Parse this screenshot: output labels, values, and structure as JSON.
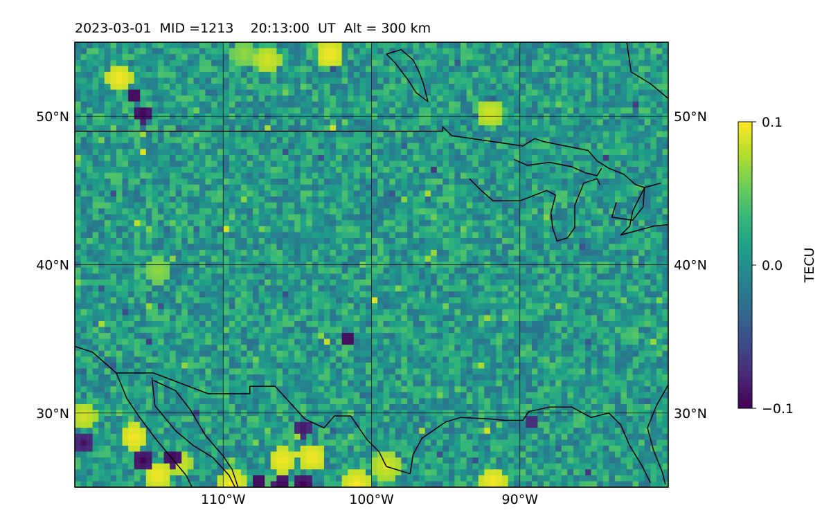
{
  "chart_data": {
    "type": "heatmap",
    "title": "2023-03-01  MID =1213    20:13:00  UT  Alt = 300 km",
    "projection": "plate-carree map",
    "lon_range": [
      -120,
      -80
    ],
    "lat_range": [
      25,
      55
    ],
    "x_ticks": [
      {
        "lon": -110,
        "label": "110°W"
      },
      {
        "lon": -100,
        "label": "100°W"
      },
      {
        "lon": -90,
        "label": "90°W"
      }
    ],
    "y_ticks": [
      {
        "lat": 50,
        "label": "50°N"
      },
      {
        "lat": 40,
        "label": "40°N"
      },
      {
        "lat": 30,
        "label": "30°N"
      }
    ],
    "y_ticks_both_sides": true,
    "grid": true,
    "colormap": "viridis",
    "colorbar": {
      "label": "TECU",
      "range": [
        -0.1,
        0.1
      ],
      "ticks": [
        {
          "value": 0.1,
          "label": "0.1"
        },
        {
          "value": 0.0,
          "label": "0.0"
        },
        {
          "value": -0.1,
          "label": "−0.1"
        }
      ],
      "stops": [
        "#440154",
        "#482777",
        "#3e4989",
        "#31688e",
        "#26828e",
        "#1f9e89",
        "#35b779",
        "#6ece58",
        "#b5de2b",
        "#fde725"
      ]
    },
    "field": {
      "description_units": "TECU",
      "cell_deg": 0.4,
      "background_value": 0.01,
      "hotspots": [
        {
          "lon": -117.2,
          "lat": 52.8,
          "value": 0.1
        },
        {
          "lon": -116.2,
          "lat": 28.6,
          "value": 0.1
        },
        {
          "lon": -114.6,
          "lat": 26.0,
          "value": 0.1
        },
        {
          "lon": -113.2,
          "lat": 26.8,
          "value": 0.09
        },
        {
          "lon": -109.6,
          "lat": 25.4,
          "value": 0.1
        },
        {
          "lon": -106.2,
          "lat": 27.0,
          "value": 0.1
        },
        {
          "lon": -104.2,
          "lat": 27.2,
          "value": 0.1
        },
        {
          "lon": -101.2,
          "lat": 25.4,
          "value": 0.1
        },
        {
          "lon": -99.2,
          "lat": 26.6,
          "value": 0.09
        },
        {
          "lon": -92.0,
          "lat": 25.6,
          "value": 0.1
        },
        {
          "lon": -103.0,
          "lat": 54.4,
          "value": 0.1
        },
        {
          "lon": -107.2,
          "lat": 54.0,
          "value": 0.09
        },
        {
          "lon": -92.2,
          "lat": 50.4,
          "value": 0.09
        },
        {
          "lon": -119.6,
          "lat": 30.0,
          "value": 0.09
        },
        {
          "lon": -114.6,
          "lat": 39.8,
          "value": 0.07
        },
        {
          "lon": -108.8,
          "lat": 54.4,
          "value": 0.07
        }
      ],
      "coldspots": [
        {
          "lon": -113.6,
          "lat": 27.2,
          "value": -0.1
        },
        {
          "lon": -115.6,
          "lat": 27.0,
          "value": -0.1
        },
        {
          "lon": -104.8,
          "lat": 25.4,
          "value": -0.1
        },
        {
          "lon": -106.2,
          "lat": 25.4,
          "value": -0.1
        },
        {
          "lon": -107.8,
          "lat": 25.6,
          "value": -0.1
        },
        {
          "lon": -116.2,
          "lat": 51.6,
          "value": -0.1
        },
        {
          "lon": -115.6,
          "lat": 50.4,
          "value": -0.1
        },
        {
          "lon": -101.8,
          "lat": 35.2,
          "value": -0.1
        },
        {
          "lon": -104.8,
          "lat": 29.2,
          "value": -0.09
        },
        {
          "lon": -119.6,
          "lat": 28.2,
          "value": -0.09
        },
        {
          "lon": -89.4,
          "lat": 29.6,
          "value": -0.08
        }
      ]
    },
    "coastlines": [
      [
        [
          -120,
          49
        ],
        [
          -95.2,
          49
        ],
        [
          -95.2,
          49.3
        ],
        [
          -94.6,
          48.7
        ],
        [
          -89.8,
          48.0
        ],
        [
          -89.0,
          48.5
        ],
        [
          -88.4,
          48.3
        ],
        [
          -85.4,
          47.7
        ],
        [
          -84.8,
          47.0
        ],
        [
          -84.0,
          46.5
        ],
        [
          -83.0,
          46.1
        ],
        [
          -82.2,
          45.4
        ],
        [
          -81.6,
          45.2
        ],
        [
          -82.4,
          43.6
        ],
        [
          -82.6,
          42.6
        ],
        [
          -83.2,
          42.0
        ],
        [
          -81.0,
          42.6
        ],
        [
          -80,
          42.7
        ]
      ],
      [
        [
          -120,
          34.5
        ],
        [
          -118.8,
          34.1
        ],
        [
          -117.2,
          32.7
        ],
        [
          -114.7,
          32.7
        ],
        [
          -111.0,
          31.3
        ],
        [
          -108.2,
          31.3
        ],
        [
          -108.2,
          31.8
        ],
        [
          -106.5,
          31.8
        ],
        [
          -104.5,
          29.6
        ],
        [
          -103.2,
          29.0
        ],
        [
          -102.5,
          29.8
        ],
        [
          -101.4,
          29.8
        ],
        [
          -100.3,
          28.2
        ],
        [
          -99.5,
          27.4
        ],
        [
          -99.0,
          26.4
        ],
        [
          -97.4,
          25.9
        ]
      ],
      [
        [
          -117.2,
          32.7
        ],
        [
          -116.5,
          31.0
        ],
        [
          -115.7,
          29.8
        ],
        [
          -114.5,
          28.2
        ],
        [
          -113.5,
          27.0
        ],
        [
          -112.5,
          25.8
        ],
        [
          -112.1,
          25.0
        ]
      ],
      [
        [
          -114.8,
          32.4
        ],
        [
          -114.6,
          30.5
        ],
        [
          -113.2,
          28.8
        ],
        [
          -112.0,
          27.8
        ],
        [
          -110.7,
          27.0
        ],
        [
          -109.6,
          25.8
        ],
        [
          -109.2,
          25.0
        ]
      ],
      [
        [
          -114.7,
          32.2
        ],
        [
          -113.2,
          31.5
        ],
        [
          -112.2,
          30.2
        ],
        [
          -111.2,
          28.5
        ],
        [
          -110.0,
          27.1
        ],
        [
          -109.4,
          26.2
        ],
        [
          -109.0,
          25.0
        ]
      ],
      [
        [
          -97.4,
          25.9
        ],
        [
          -97.2,
          27.2
        ],
        [
          -96.6,
          28.3
        ],
        [
          -95.0,
          29.4
        ],
        [
          -94.0,
          29.7
        ],
        [
          -92.0,
          29.6
        ],
        [
          -91.0,
          29.5
        ],
        [
          -89.8,
          29.5
        ],
        [
          -89.4,
          30.1
        ],
        [
          -88.0,
          30.4
        ],
        [
          -86.5,
          30.4
        ],
        [
          -85.2,
          29.7
        ],
        [
          -84.0,
          30.0
        ],
        [
          -83.2,
          29.2
        ],
        [
          -82.6,
          27.8
        ],
        [
          -81.8,
          26.5
        ],
        [
          -81.2,
          25.3
        ]
      ],
      [
        [
          -80,
          31.9
        ],
        [
          -80.8,
          30.5
        ],
        [
          -81.4,
          29.0
        ],
        [
          -81.0,
          27.5
        ],
        [
          -80.4,
          26.0
        ],
        [
          -80.2,
          25.2
        ]
      ],
      [
        [
          -93.4,
          45.8
        ],
        [
          -92.6,
          45.0
        ],
        [
          -91.8,
          44.3
        ],
        [
          -90.0,
          44.3
        ],
        [
          -88.2,
          45.0
        ],
        [
          -87.6,
          44.7
        ],
        [
          -87.9,
          43.5
        ],
        [
          -87.8,
          42.5
        ],
        [
          -87.5,
          41.6
        ],
        [
          -86.8,
          41.8
        ],
        [
          -86.3,
          42.5
        ],
        [
          -86.3,
          44.0
        ],
        [
          -85.7,
          45.5
        ],
        [
          -84.8,
          45.8
        ],
        [
          -84.6,
          45.4
        ]
      ],
      [
        [
          -83.5,
          44.2
        ],
        [
          -83.8,
          43.2
        ],
        [
          -82.4,
          43.0
        ],
        [
          -81.7,
          43.9
        ],
        [
          -81.6,
          45.2
        ],
        [
          -80.5,
          45.5
        ]
      ],
      [
        [
          -84.5,
          46.5
        ],
        [
          -84.8,
          46.0
        ],
        [
          -85.6,
          46.2
        ],
        [
          -86.5,
          46.6
        ],
        [
          -88.0,
          46.9
        ],
        [
          -89.5,
          46.7
        ],
        [
          -90.4,
          47.1
        ]
      ],
      [
        [
          -99.0,
          54.2
        ],
        [
          -98.0,
          54.5
        ],
        [
          -97.2,
          53.8
        ],
        [
          -96.8,
          53.0
        ],
        [
          -96.5,
          52.2
        ],
        [
          -96.2,
          51.0
        ],
        [
          -97.0,
          51.6
        ],
        [
          -97.5,
          52.4
        ],
        [
          -98.1,
          53.2
        ],
        [
          -98.4,
          53.6
        ],
        [
          -99.0,
          54.2
        ]
      ],
      [
        [
          -82.8,
          55
        ],
        [
          -82.5,
          53.0
        ],
        [
          -81.2,
          52.2
        ],
        [
          -80.0,
          51.2
        ]
      ]
    ]
  }
}
